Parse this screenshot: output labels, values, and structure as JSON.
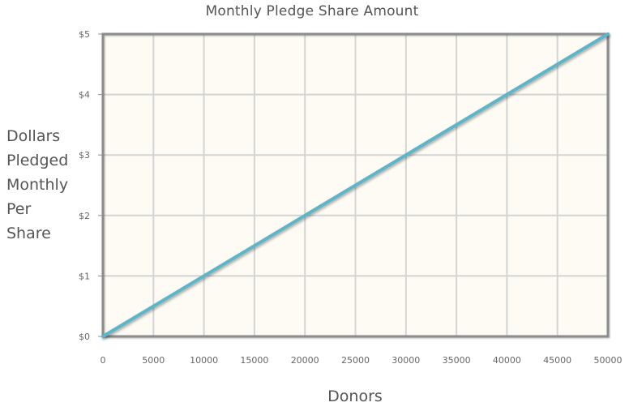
{
  "chart_data": {
    "type": "line",
    "title": "Monthly Pledge Share Amount",
    "xlabel": "Donors",
    "ylabel": "Dollars\nPledged\nMonthly\nPer\nShare",
    "x_ticks": [
      "0",
      "5000",
      "10000",
      "15000",
      "20000",
      "25000",
      "30000",
      "35000",
      "40000",
      "45000",
      "50000"
    ],
    "y_ticks": [
      "$0",
      "$1",
      "$2",
      "$3",
      "$4",
      "$5"
    ],
    "xlim": [
      0,
      50000
    ],
    "ylim": [
      0,
      5
    ],
    "grid": true,
    "series": [
      {
        "color": "#5bb5c8",
        "x": [
          0,
          50000
        ],
        "y": [
          0,
          5
        ]
      }
    ],
    "colors": {
      "plot_background": "#fdfbf3",
      "grid": "#d4d4d4",
      "frame": "#8c8c8c",
      "line": "#5bb5c8"
    }
  }
}
